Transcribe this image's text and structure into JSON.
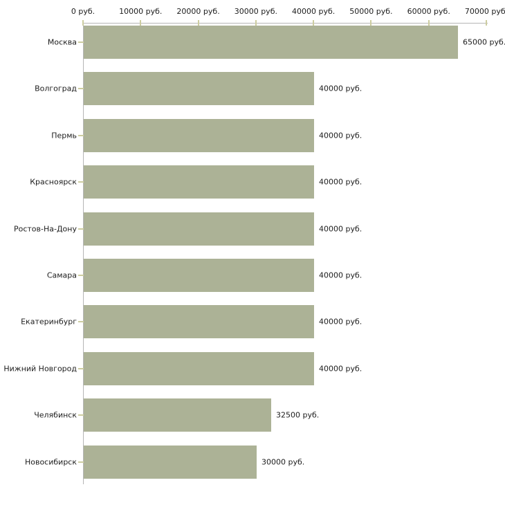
{
  "chart_data": {
    "type": "bar",
    "orientation": "horizontal",
    "title": "",
    "xlabel": "",
    "ylabel": "",
    "grid": false,
    "legend": null,
    "categories": [
      "Москва",
      "Волгоград",
      "Пермь",
      "Красноярск",
      "Ростов-На-Дону",
      "Самара",
      "Екатеринбург",
      "Нижний Новгород",
      "Челябинск",
      "Новосибирск"
    ],
    "values": [
      65000,
      40000,
      40000,
      40000,
      40000,
      40000,
      40000,
      40000,
      32500,
      30000
    ],
    "value_labels": [
      "65000 руб.",
      "40000 руб.",
      "40000 руб.",
      "40000 руб.",
      "40000 руб.",
      "40000 руб.",
      "40000 руб.",
      "40000 руб.",
      "32500 руб.",
      "30000 руб."
    ],
    "x_axis": {
      "position": "top",
      "range": [
        0,
        70000
      ],
      "ticks": [
        0,
        10000,
        20000,
        30000,
        40000,
        50000,
        60000,
        70000
      ],
      "tick_labels": [
        "0 руб.",
        "10000 руб.",
        "20000 руб.",
        "30000 руб.",
        "40000 руб.",
        "50000 руб.",
        "60000 руб.",
        "70000 руб."
      ]
    },
    "colors": {
      "bar": "#acb296",
      "axis_line": "#b5b5b5",
      "tick_mark": "#cdcda0",
      "text": "#1c1c1c",
      "background": "#ffffff"
    }
  }
}
